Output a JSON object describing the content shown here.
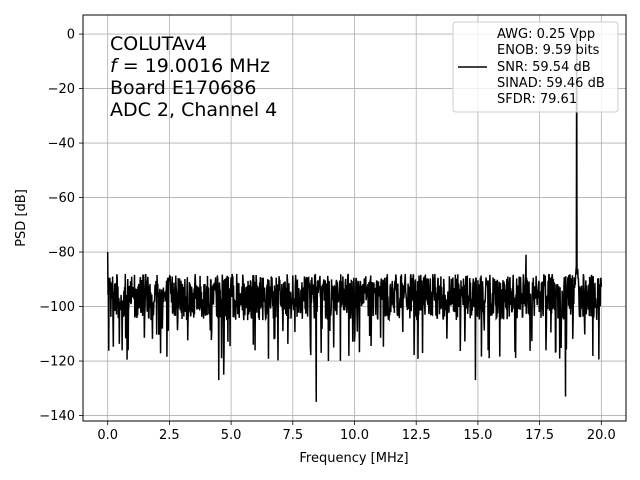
{
  "chart_data": {
    "type": "line",
    "xlabel": "Frequency [MHz]",
    "ylabel": "PSD [dB]",
    "xlim": [
      -1.0,
      21.0
    ],
    "ylim": [
      -142.0,
      7.0
    ],
    "xticks": [
      0.0,
      2.5,
      5.0,
      7.5,
      10.0,
      12.5,
      15.0,
      17.5,
      20.0
    ],
    "xtick_labels": [
      "0.0",
      "2.5",
      "5.0",
      "7.5",
      "10.0",
      "12.5",
      "15.0",
      "17.5",
      "20.0"
    ],
    "yticks": [
      0,
      -20,
      -40,
      -60,
      -80,
      -100,
      -120,
      -140
    ],
    "ytick_labels": [
      "0",
      "−20",
      "−40",
      "−60",
      "−80",
      "−100",
      "−120",
      "−140"
    ],
    "grid": true,
    "legend_position": "top-right",
    "series_color": "#000000",
    "noise_floor_db": -97,
    "noise_band_db": [
      -105,
      -88
    ],
    "signal_peak": {
      "x": 19.0016,
      "y": 0.0
    },
    "dc_spike": {
      "x": 0.0,
      "y": -80.0
    },
    "notable_points": [
      {
        "x": 0.0,
        "y": -80.0
      },
      {
        "x": 4.5,
        "y": -127.0
      },
      {
        "x": 4.7,
        "y": -125.0
      },
      {
        "x": 8.45,
        "y": -135.0
      },
      {
        "x": 8.65,
        "y": -117.0
      },
      {
        "x": 14.9,
        "y": -127.0
      },
      {
        "x": 16.95,
        "y": -81.0
      },
      {
        "x": 18.55,
        "y": -133.0
      },
      {
        "x": 18.95,
        "y": -83.0
      },
      {
        "x": 19.0016,
        "y": 0.0
      }
    ],
    "annotation": {
      "line1": "COLUTAv4",
      "line2_var": "f",
      "line2_rest": " = 19.0016 MHz",
      "line3": "Board E170686",
      "line4": "ADC 2, Channel 4"
    },
    "legend": {
      "lines": [
        "AWG: 0.25 Vpp",
        "ENOB: 9.59 bits",
        "SNR: 59.54 dB",
        "SINAD: 59.46 dB",
        "SFDR: 79.61"
      ]
    }
  }
}
